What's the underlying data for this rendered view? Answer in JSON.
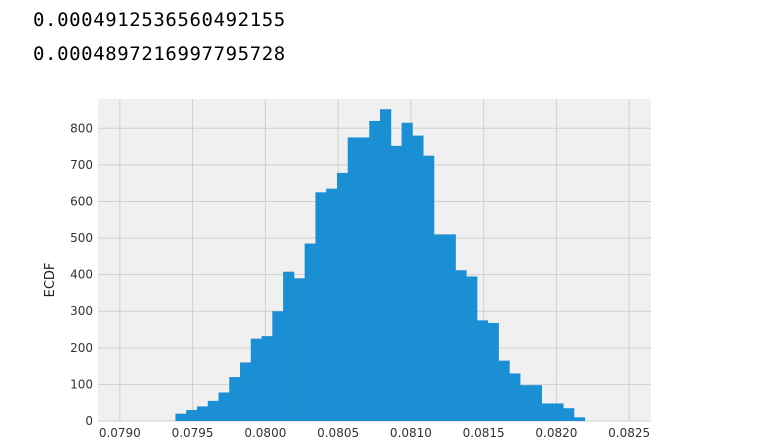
{
  "output": {
    "lines": [
      "0.0004912536560492155",
      "0.0004897216997795728"
    ]
  },
  "chart_data": {
    "type": "bar",
    "style": "histogram",
    "bar_color": "#1a8fd3",
    "background_color": "#f0f0f0",
    "grid_color": "#cfcfcf",
    "grid": true,
    "ylabel": "ECDF",
    "xlabel": "",
    "title": "",
    "xlim": [
      0.07885,
      0.08265
    ],
    "ylim": [
      0,
      880
    ],
    "x_ticks": [
      0.079,
      0.0795,
      0.08,
      0.0805,
      0.081,
      0.0815,
      0.082,
      0.0825
    ],
    "x_tick_labels": [
      "0.0790",
      "0.0795",
      "0.0800",
      "0.0805",
      "0.0810",
      "0.0815",
      "0.0820",
      "0.0825"
    ],
    "y_ticks": [
      0,
      100,
      200,
      300,
      400,
      500,
      600,
      700,
      800
    ],
    "y_tick_labels": [
      "0",
      "100",
      "200",
      "300",
      "400",
      "500",
      "600",
      "700",
      "800"
    ],
    "bin_width": 7.41e-05,
    "bin_starts": [
      0.079382,
      0.079456,
      0.07953,
      0.079604,
      0.079678,
      0.079752,
      0.079826,
      0.0799,
      0.079974,
      0.080048,
      0.080122,
      0.080196,
      0.08027,
      0.080344,
      0.080418,
      0.080492,
      0.080566,
      0.08064,
      0.080714,
      0.080788,
      0.080862,
      0.080936,
      0.08101,
      0.081084,
      0.081158,
      0.081232,
      0.081306,
      0.08138,
      0.081454,
      0.081528,
      0.081602,
      0.081676,
      0.08175,
      0.081824,
      0.081898,
      0.081972,
      0.082046,
      0.08212
    ],
    "values": [
      20,
      30,
      40,
      55,
      78,
      120,
      160,
      225,
      232,
      300,
      408,
      390,
      485,
      625,
      635,
      678,
      775,
      775,
      820,
      852,
      752,
      815,
      780,
      725,
      510,
      510,
      412,
      395,
      275,
      268,
      165,
      130,
      98,
      98,
      48,
      48,
      35,
      10
    ]
  }
}
